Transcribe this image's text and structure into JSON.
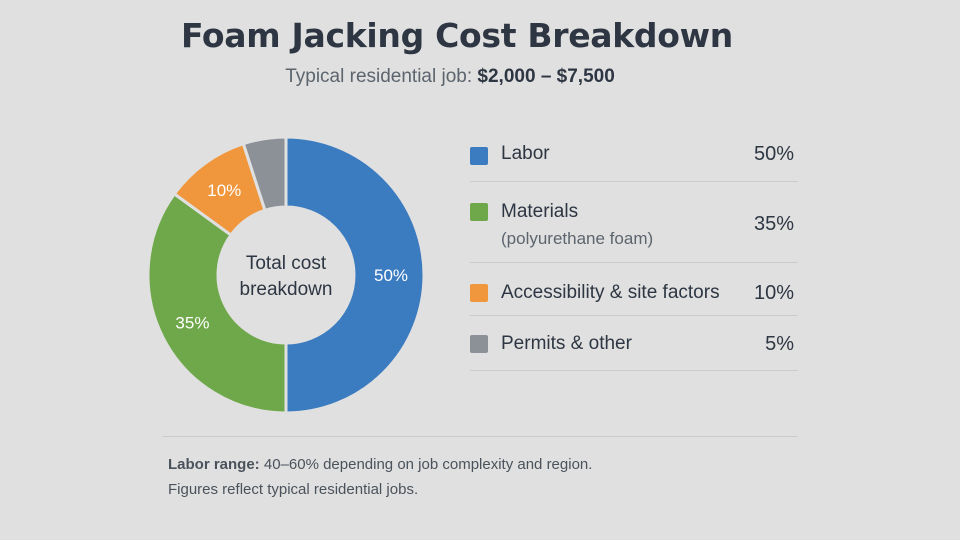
{
  "title": "Foam Jacking Cost Breakdown",
  "subtitle": {
    "prefix": "Typical residential job:",
    "range": "$2,000 – $7,500"
  },
  "chart_data": {
    "type": "pie",
    "categories": [
      "Labor",
      "Materials",
      "Accessibility & site factors",
      "Permits & other"
    ],
    "values": [
      50,
      35,
      10,
      5
    ],
    "unit": "%",
    "center_label": [
      "Total cost",
      "breakdown"
    ],
    "slice_labels": [
      "50%",
      "35%",
      "10%",
      ""
    ],
    "colors": [
      "#3b7bc0",
      "#6fa84a",
      "#f0973d",
      "#8c9197"
    ],
    "legend": [
      {
        "label": "Labor",
        "sublabel": "",
        "value": "50%"
      },
      {
        "label": "Materials",
        "sublabel": "(polyurethane foam)",
        "value": "35%"
      },
      {
        "label": "Accessibility & site factors",
        "sublabel": "",
        "value": "10%"
      },
      {
        "label": "Permits & other",
        "sublabel": "",
        "value": "5%"
      }
    ]
  },
  "notes": {
    "line1_bold": "Labor range:",
    "line1_text": "40–60% depending on job complexity and region.",
    "line2": "Figures reflect typical residential jobs."
  }
}
